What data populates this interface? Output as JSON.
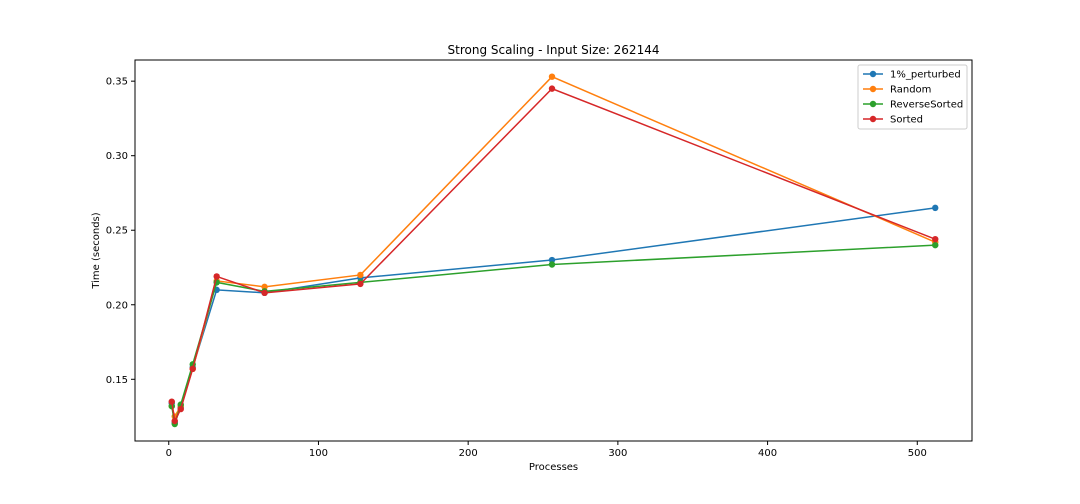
{
  "chart_data": {
    "type": "line",
    "title": "Strong Scaling - Input Size: 262144",
    "xlabel": "Processes",
    "ylabel": "Time (seconds)",
    "xlim": [
      -22.55,
      536.55
    ],
    "ylim": [
      0.1086,
      0.3642
    ],
    "xticks": [
      0,
      100,
      200,
      300,
      400,
      500
    ],
    "xtick_labels": [
      "0",
      "100",
      "200",
      "300",
      "400",
      "500"
    ],
    "yticks": [
      0.15,
      0.2,
      0.25,
      0.3,
      0.35
    ],
    "ytick_labels": [
      "0.15",
      "0.20",
      "0.25",
      "0.30",
      "0.35"
    ],
    "grid": false,
    "legend_position": "top-right",
    "x": [
      2,
      4,
      8,
      16,
      32,
      64,
      128,
      256,
      512
    ],
    "series": [
      {
        "name": "1%_perturbed",
        "color": "#1f77b4",
        "values": [
          0.134,
          0.121,
          0.131,
          0.158,
          0.21,
          0.208,
          0.218,
          0.23,
          0.265
        ]
      },
      {
        "name": "Random",
        "color": "#ff7f0e",
        "values": [
          0.132,
          0.125,
          0.132,
          0.157,
          0.216,
          0.212,
          0.22,
          0.353,
          0.242
        ]
      },
      {
        "name": "ReverseSorted",
        "color": "#2ca02c",
        "values": [
          0.132,
          0.12,
          0.133,
          0.16,
          0.215,
          0.209,
          0.215,
          0.227,
          0.24
        ]
      },
      {
        "name": "Sorted",
        "color": "#d62728",
        "values": [
          0.135,
          0.122,
          0.13,
          0.157,
          0.219,
          0.208,
          0.214,
          0.345,
          0.244
        ]
      }
    ]
  }
}
